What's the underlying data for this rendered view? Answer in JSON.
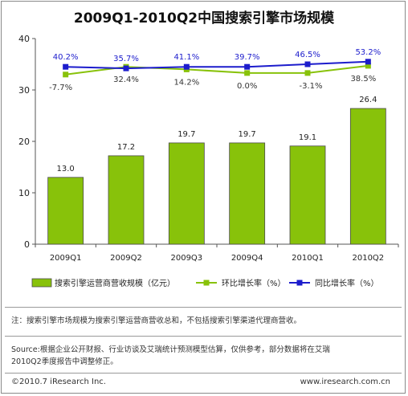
{
  "chart_data": {
    "type": "bar",
    "title": "2009Q1-2010Q2中国搜索引擎市场规模",
    "categories": [
      "2009Q1",
      "2009Q2",
      "2009Q3",
      "2009Q4",
      "2010Q1",
      "2010Q2"
    ],
    "bar_series": {
      "name": "搜索引擎运营商营收规模（亿元）",
      "values": [
        13.0,
        17.2,
        19.7,
        19.7,
        19.1,
        26.4
      ],
      "labels": [
        "13.0",
        "17.2",
        "19.7",
        "19.7",
        "19.1",
        "26.4"
      ],
      "color": "#88c20a"
    },
    "line_series": [
      {
        "name": "环比增长率（%）",
        "values": [
          -7.7,
          32.4,
          14.2,
          0.0,
          -3.1,
          38.5
        ],
        "labels": [
          "-7.7%",
          "32.4%",
          "14.2%",
          "0.0%",
          "-3.1%",
          "38.5%"
        ],
        "plot_y": [
          33.0,
          34.5,
          34.0,
          33.3,
          33.3,
          34.7
        ],
        "color": "#88c20a",
        "marker": "square"
      },
      {
        "name": "同比增长率（%）",
        "values": [
          40.2,
          35.7,
          41.1,
          39.7,
          46.5,
          53.2
        ],
        "labels": [
          "40.2%",
          "35.7%",
          "41.1%",
          "39.7%",
          "46.5%",
          "53.2%"
        ],
        "plot_y": [
          34.5,
          34.2,
          34.5,
          34.5,
          35.0,
          35.5
        ],
        "color": "#1c1ccc",
        "marker": "square"
      }
    ],
    "yticks": [
      "0",
      "10",
      "20",
      "30",
      "40"
    ],
    "ylim": [
      0,
      40
    ],
    "xlabel": "",
    "ylabel": "",
    "grid": false,
    "legend": "bottom"
  },
  "note": "注：搜索引擎市场规模为搜索引擎运营商营收总和，不包括搜索引擎渠道代理商营收。",
  "source_line1": "Source:根据企业公开财报、行业访谈及艾瑞统计预测模型估算，仅供参考，部分数据将在艾瑞",
  "source_line2": "2010Q2季度报告中调整修正。",
  "footer_left": "©2010.7 iResearch Inc.",
  "footer_right": "www.iresearch.com.cn"
}
